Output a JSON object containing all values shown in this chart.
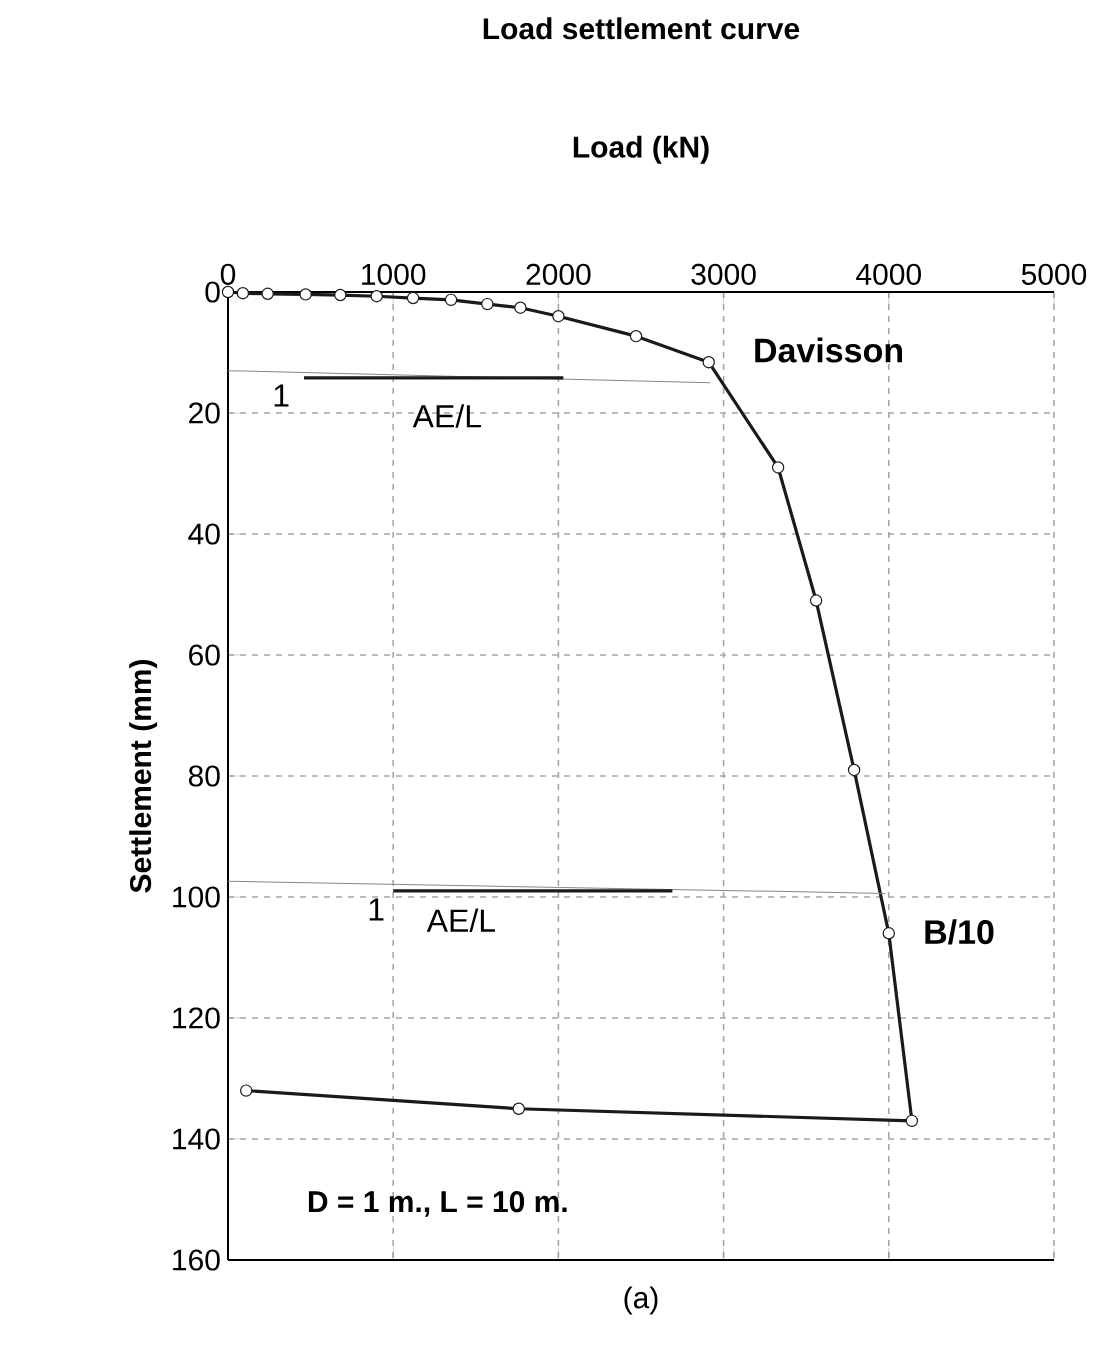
{
  "chart_data": {
    "type": "line",
    "title": "Load settlement curve",
    "xlabel": "Load (kN)",
    "ylabel": "Settlement (mm)",
    "xlim": [
      0,
      5000
    ],
    "xticks": [
      0,
      1000,
      2000,
      3000,
      4000,
      5000
    ],
    "ylim": [
      160,
      0
    ],
    "yticks": [
      0,
      20,
      40,
      60,
      80,
      100,
      120,
      140,
      160
    ],
    "grid": true,
    "line_style": "solid",
    "series": [
      {
        "color": "#1a1a1a",
        "marker": "circle",
        "x": [
          0,
          90,
          240,
          470,
          680,
          900,
          1120,
          1350,
          1570,
          1770,
          2000,
          2470,
          2910,
          3330,
          3560,
          3790,
          4000,
          4140,
          1760,
          110
        ],
        "values": [
          0,
          0.2,
          0.3,
          0.4,
          0.5,
          0.7,
          1,
          1.3,
          2,
          2.6,
          4,
          7.3,
          11.6,
          29,
          51,
          79,
          106,
          137,
          135,
          132
        ]
      },
      {
        "color": "#888888",
        "marker": "none",
        "x": [
          0,
          2920
        ],
        "values": [
          13,
          15
        ]
      },
      {
        "color": "#1a1a1a",
        "marker": "none",
        "x": [
          460,
          2030
        ],
        "values": [
          14.2,
          14.2
        ]
      },
      {
        "color": "#888888",
        "marker": "none",
        "x": [
          0,
          3980
        ],
        "values": [
          97.4,
          99.4
        ]
      },
      {
        "color": "#1a1a1a",
        "marker": "none",
        "x": [
          1000,
          2690
        ],
        "values": [
          99,
          99
        ]
      }
    ],
    "annotations": [
      "Davisson",
      "B/10",
      "1",
      "AE/L",
      "1",
      "AE/L",
      "D = 1 m., L = 10 m.",
      "(a)"
    ]
  }
}
